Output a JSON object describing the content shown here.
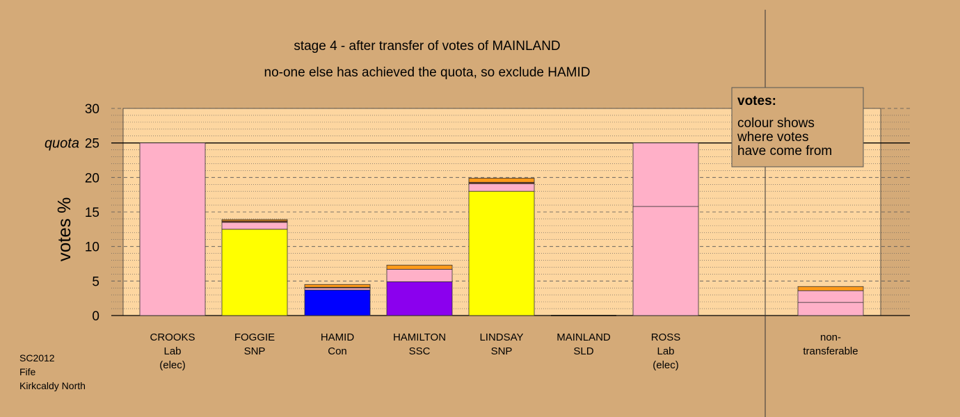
{
  "chart_data": {
    "type": "bar",
    "stacked": true,
    "title": "stage 4 - after transfer of votes of MAINLAND",
    "subtitle": "no-one else has achieved the quota, so exclude HAMID",
    "ylabel": "votes %",
    "ylim": [
      0,
      30
    ],
    "yticks": [
      "0",
      "5",
      "10",
      "15",
      "20",
      "25",
      "30"
    ],
    "quota_label": "quota",
    "quota_value": 25,
    "grid": true,
    "legend": {
      "placement": "top-right",
      "heading": "votes:",
      "lines": [
        "colour shows",
        "where votes",
        "have come from"
      ]
    },
    "footer": [
      "SC2012",
      "Fife",
      "Kirkcaldy North"
    ],
    "colors": {
      "background": "#d4aa78",
      "plot": "#fdd6a0",
      "Lab": "#ffb0c8",
      "SNP": "#ffff00",
      "Con": "#0000ff",
      "SSC": "#8b00ee",
      "SLD": "#ff9a1a",
      "other": "#7a3a1a"
    },
    "candidates": [
      {
        "name": "CROOKS",
        "party": "Lab",
        "note": "(elec)",
        "segments": [
          {
            "source": "Lab",
            "value": 25.0
          }
        ]
      },
      {
        "name": "FOGGIE",
        "party": "SNP",
        "note": "",
        "segments": [
          {
            "source": "SNP",
            "value": 12.5
          },
          {
            "source": "Lab",
            "value": 1.0
          },
          {
            "source": "other",
            "value": 0.2
          },
          {
            "source": "SLD",
            "value": 0.2
          }
        ]
      },
      {
        "name": "HAMID",
        "party": "Con",
        "note": "",
        "segments": [
          {
            "source": "Con",
            "value": 3.7
          },
          {
            "source": "Lab",
            "value": 0.3
          },
          {
            "source": "other",
            "value": 0.1
          },
          {
            "source": "SLD",
            "value": 0.4
          }
        ]
      },
      {
        "name": "HAMILTON",
        "party": "SSC",
        "note": "",
        "segments": [
          {
            "source": "SSC",
            "value": 4.9
          },
          {
            "source": "Lab",
            "value": 1.8
          },
          {
            "source": "SLD",
            "value": 0.6
          }
        ]
      },
      {
        "name": "LINDSAY",
        "party": "SNP",
        "note": "",
        "segments": [
          {
            "source": "SNP",
            "value": 18.0
          },
          {
            "source": "Lab",
            "value": 1.1
          },
          {
            "source": "other",
            "value": 0.2
          },
          {
            "source": "SLD",
            "value": 0.6
          }
        ]
      },
      {
        "name": "MAINLAND",
        "party": "SLD",
        "note": "",
        "segments": []
      },
      {
        "name": "ROSS",
        "party": "Lab",
        "note": "(elec)",
        "segments": [
          {
            "source": "Lab",
            "value": 15.8
          },
          {
            "source": "Lab",
            "value": 9.2
          }
        ]
      },
      {
        "name": "non-",
        "party": "transferable",
        "note": "",
        "segments": [
          {
            "source": "Lab",
            "value": 1.9
          },
          {
            "source": "Lab",
            "value": 1.7
          },
          {
            "source": "SLD",
            "value": 0.6
          }
        ]
      }
    ]
  }
}
